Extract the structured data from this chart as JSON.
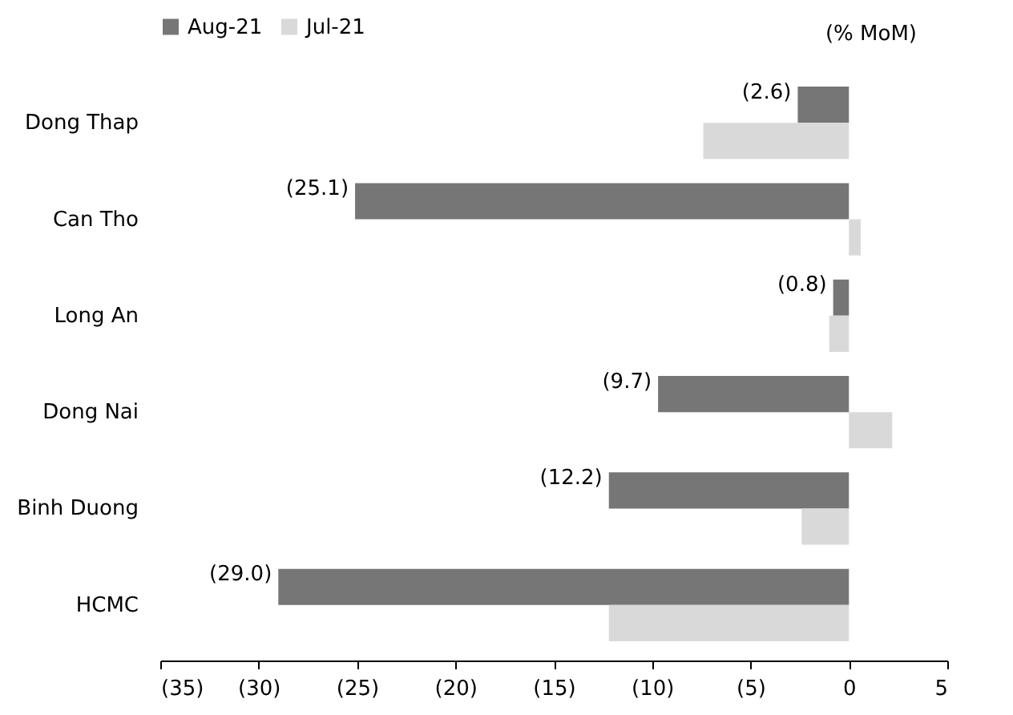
{
  "chart_data": {
    "type": "bar",
    "orientation": "horizontal",
    "categories": [
      "Dong Thap",
      "Can Tho",
      "Long An",
      "Dong Nai",
      "Binh Duong",
      "HCMC"
    ],
    "series": [
      {
        "name": "Aug-21",
        "color": "#767676",
        "values": [
          -2.6,
          -25.1,
          -0.8,
          -9.7,
          -12.2,
          -29.0
        ],
        "value_labels": [
          "(2.6)",
          "(25.1)",
          "(0.8)",
          "(9.7)",
          "(12.2)",
          "(29.0)"
        ]
      },
      {
        "name": "Jul-21",
        "color": "#d9d9d9",
        "values": [
          -7.4,
          0.6,
          -1.0,
          2.2,
          -2.4,
          -12.2
        ]
      }
    ],
    "xlim": [
      -35,
      5
    ],
    "xticks": [
      {
        "value": -35,
        "label": "(35)"
      },
      {
        "value": -30,
        "label": "(30)"
      },
      {
        "value": -25,
        "label": "(25)"
      },
      {
        "value": -20,
        "label": "(20)"
      },
      {
        "value": -15,
        "label": "(15)"
      },
      {
        "value": -10,
        "label": "(10)"
      },
      {
        "value": -5,
        "label": "(5)"
      },
      0,
      5
    ],
    "annotations": [
      "(% MoM)"
    ],
    "legend": "top",
    "grid": false
  }
}
